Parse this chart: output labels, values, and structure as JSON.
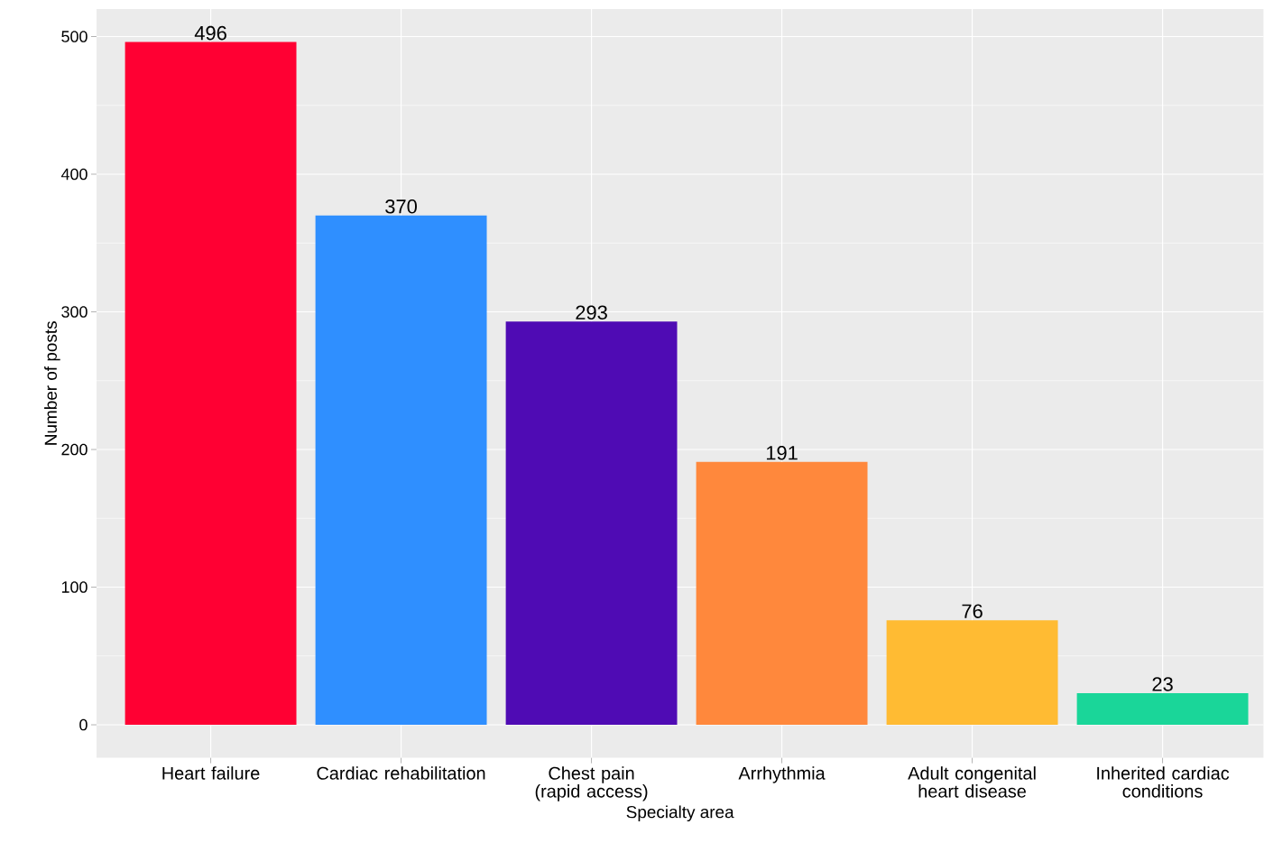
{
  "chart_data": {
    "type": "bar",
    "xlabel": "Specialty area",
    "ylabel": "Number of posts",
    "categories": [
      "Heart failure",
      "Cardiac rehabilitation",
      "Chest pain (rapid access)",
      "Arrhythmia",
      "Adult congenital heart disease",
      "Inherited cardiac conditions"
    ],
    "values": [
      496,
      370,
      293,
      191,
      76,
      23
    ],
    "colors": [
      "#ff0033",
      "#2f8fff",
      "#4f0bb4",
      "#ff883c",
      "#ffbb33",
      "#1ad699"
    ],
    "ylim": [
      -24,
      520
    ],
    "yticks": [
      0,
      100,
      200,
      300,
      400,
      500
    ],
    "grid": true,
    "data_labels": true
  }
}
